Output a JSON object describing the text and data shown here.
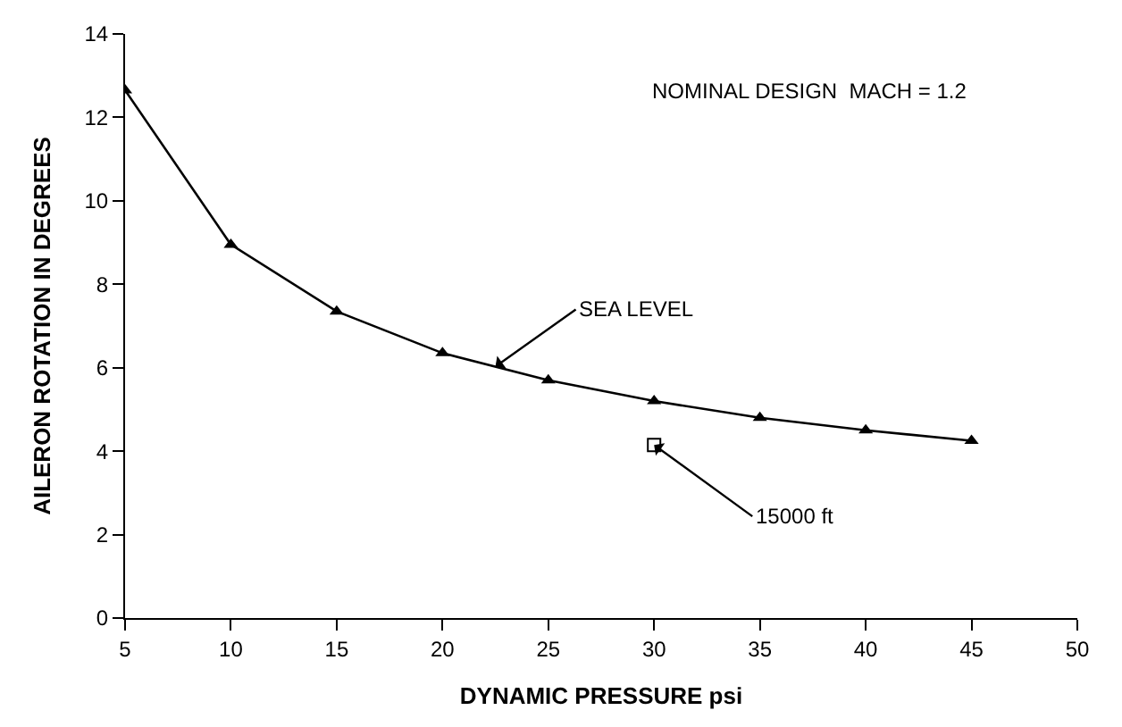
{
  "chart_data": {
    "type": "line",
    "xlabel": "DYNAMIC PRESSURE psi",
    "ylabel": "AILERON ROTATION IN DEGREES",
    "annotations": [
      "NOMINAL DESIGN  MACH = 1.2"
    ],
    "series": [
      {
        "name": "SEA LEVEL",
        "marker": "triangle",
        "color": "#000000",
        "x": [
          5,
          10,
          15,
          20,
          25,
          30,
          35,
          40,
          45
        ],
        "values": [
          12.65,
          8.95,
          7.35,
          6.35,
          5.7,
          5.2,
          4.8,
          4.5,
          4.25
        ]
      },
      {
        "name": "15000 ft",
        "type": "scatter",
        "marker": "square",
        "color": "#000000",
        "x": [
          30
        ],
        "values": [
          4.15
        ]
      }
    ],
    "xlim": [
      5,
      50
    ],
    "xticks": [
      5,
      10,
      15,
      20,
      25,
      30,
      35,
      40,
      45,
      50
    ],
    "ylim": [
      0,
      14
    ],
    "yticks": [
      0,
      2,
      4,
      6,
      8,
      10,
      12,
      14
    ],
    "grid": false,
    "legend": false
  }
}
